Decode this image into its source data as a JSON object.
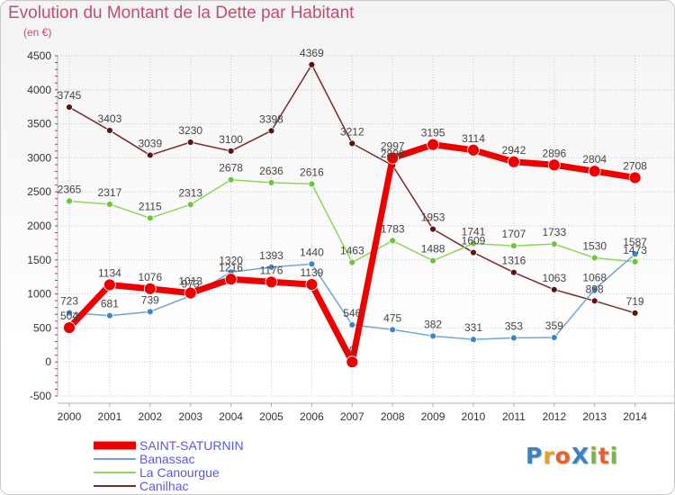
{
  "chart_data": {
    "type": "line",
    "title": "Evolution du Montant de la Dette par Habitant",
    "subtitle": "(en €)",
    "xlabel": "",
    "ylabel": "",
    "ylim": [
      -500,
      4500
    ],
    "yticks": [
      -500,
      0,
      500,
      1000,
      1500,
      2000,
      2500,
      3000,
      3500,
      4000,
      4500
    ],
    "grid": true,
    "legend_position": "bottom-left",
    "x": [
      "2000",
      "2001",
      "2002",
      "2003",
      "2004",
      "2005",
      "2006",
      "2007",
      "2008",
      "2009",
      "2010",
      "2011",
      "2012",
      "2013",
      "2014"
    ],
    "series": [
      {
        "name": "Canilhac",
        "color": "#7a2a2a",
        "marker_color": "#5a1414",
        "values": [
          3745,
          3403,
          3039,
          3230,
          3100,
          3398,
          4369,
          3212,
          2888,
          1953,
          1609,
          1316,
          1063,
          898,
          719
        ]
      },
      {
        "name": "La Canourgue",
        "color": "#8ed65a",
        "marker_color": "#6cc63a",
        "values": [
          2365,
          2317,
          2115,
          2313,
          2678,
          2636,
          2616,
          1463,
          1783,
          1488,
          1741,
          1707,
          1733,
          1530,
          1473
        ]
      },
      {
        "name": "Banassac",
        "color": "#6fa5d4",
        "marker_color": "#3f86c8",
        "values": [
          723,
          681,
          739,
          973,
          1320,
          1393,
          1440,
          546,
          475,
          382,
          331,
          353,
          359,
          1068,
          1587
        ]
      },
      {
        "name": "SAINT-SATURNIN",
        "color": "#ee0000",
        "marker_color": "#ee0000",
        "values": [
          504,
          1134,
          1076,
          1013,
          1216,
          1176,
          1139,
          0,
          2997,
          3195,
          3114,
          2942,
          2896,
          2804,
          2708
        ]
      }
    ]
  },
  "logo": {
    "text": "ProXiti",
    "letter_colors": [
      "#3b82c4",
      "#e8a020",
      "#e8602a",
      "#3b82c4",
      "#7ab648",
      "#e8602a",
      "#7ab648"
    ]
  }
}
